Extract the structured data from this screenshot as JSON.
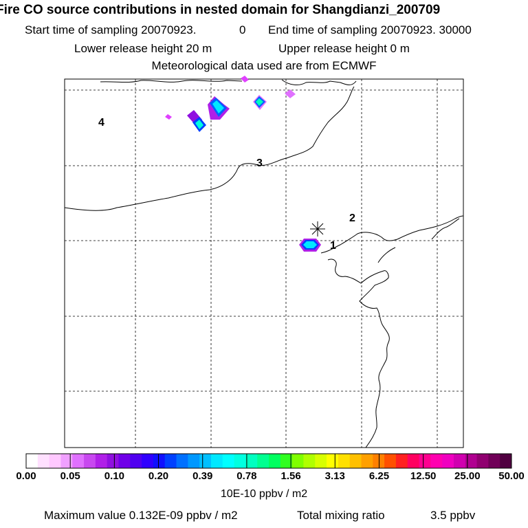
{
  "header": {
    "title": "Fire CO source contributions in nested domain for Shangdianzi_200709",
    "start_label": "Start time of sampling 20070923.",
    "start_value": "0",
    "end_label": "End time of sampling 20070923. 30000",
    "lower_label": "Lower release height   20 m",
    "upper_label": "Upper release height    0 m",
    "met_label": "Meteorological data used are from ECMWF"
  },
  "map": {
    "region_labels": [
      "1",
      "2",
      "3",
      "4"
    ],
    "station_marker": "receptor-star"
  },
  "legend": {
    "tick_labels": [
      "0.00",
      "0.05",
      "0.10",
      "0.20",
      "0.39",
      "0.78",
      "1.56",
      "3.13",
      "6.25",
      "12.50",
      "25.00",
      "50.00"
    ],
    "units": "10E-10 ppbv / m2",
    "colors": [
      "#ffffff",
      "#ffe0ff",
      "#ffc8ff",
      "#f0a0ff",
      "#e070ff",
      "#c848f0",
      "#b020e8",
      "#9010e0",
      "#7000e8",
      "#5000f0",
      "#3000ff",
      "#1010ff",
      "#0040ff",
      "#0070ff",
      "#0098ff",
      "#00c0ff",
      "#00e8ff",
      "#00ffff",
      "#00ffe0",
      "#00ffc0",
      "#00ff90",
      "#00ff60",
      "#30ff20",
      "#80ff00",
      "#b0ff00",
      "#d8ff00",
      "#ffff00",
      "#ffe000",
      "#ffc000",
      "#ffa000",
      "#ff8000",
      "#ff5000",
      "#ff2020",
      "#ff0060",
      "#ff0090",
      "#ff00b0",
      "#f000c0",
      "#d000b0",
      "#b00090",
      "#900070",
      "#700058",
      "#500040"
    ]
  },
  "footer": {
    "max_label": "Maximum value  0.132E-09 ppbv / m2",
    "total_label": "Total mixing ratio",
    "total_value": "3.5 ppbv"
  }
}
